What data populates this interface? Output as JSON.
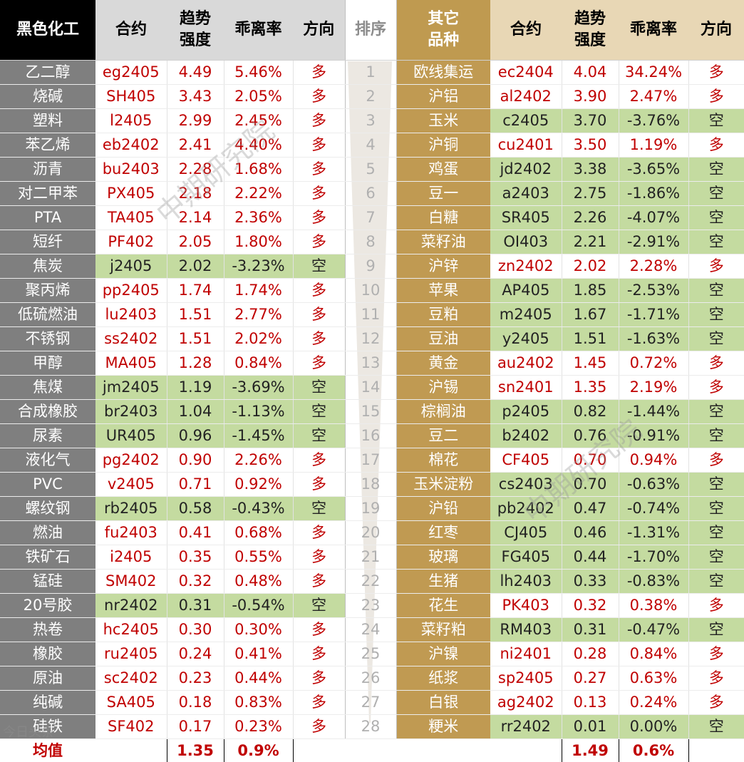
{
  "left": {
    "header": {
      "name": "黑色化工",
      "contract": "合约",
      "strength": "趋势\n强度",
      "deviation": "乖离率",
      "direction": "方向"
    },
    "rows": [
      {
        "name": "乙二醇",
        "contract": "eg2405",
        "strength": "4.49",
        "deviation": "5.46%",
        "direction": "多"
      },
      {
        "name": "烧碱",
        "contract": "SH405",
        "strength": "3.43",
        "deviation": "2.05%",
        "direction": "多"
      },
      {
        "name": "塑料",
        "contract": "l2405",
        "strength": "2.99",
        "deviation": "2.45%",
        "direction": "多"
      },
      {
        "name": "苯乙烯",
        "contract": "eb2402",
        "strength": "2.41",
        "deviation": "4.40%",
        "direction": "多"
      },
      {
        "name": "沥青",
        "contract": "bu2403",
        "strength": "2.28",
        "deviation": "1.68%",
        "direction": "多"
      },
      {
        "name": "对二甲苯",
        "contract": "PX405",
        "strength": "2.18",
        "deviation": "2.22%",
        "direction": "多"
      },
      {
        "name": "PTA",
        "contract": "TA405",
        "strength": "2.14",
        "deviation": "2.36%",
        "direction": "多"
      },
      {
        "name": "短纤",
        "contract": "PF402",
        "strength": "2.05",
        "deviation": "1.80%",
        "direction": "多"
      },
      {
        "name": "焦炭",
        "contract": "j2405",
        "strength": "2.02",
        "deviation": "-3.23%",
        "direction": "空"
      },
      {
        "name": "聚丙烯",
        "contract": "pp2405",
        "strength": "1.74",
        "deviation": "1.74%",
        "direction": "多"
      },
      {
        "name": "低硫燃油",
        "contract": "lu2403",
        "strength": "1.51",
        "deviation": "2.77%",
        "direction": "多"
      },
      {
        "name": "不锈钢",
        "contract": "ss2402",
        "strength": "1.51",
        "deviation": "2.02%",
        "direction": "多"
      },
      {
        "name": "甲醇",
        "contract": "MA405",
        "strength": "1.28",
        "deviation": "0.84%",
        "direction": "多"
      },
      {
        "name": "焦煤",
        "contract": "jm2405",
        "strength": "1.19",
        "deviation": "-3.69%",
        "direction": "空"
      },
      {
        "name": "合成橡胶",
        "contract": "br2403",
        "strength": "1.04",
        "deviation": "-1.13%",
        "direction": "空"
      },
      {
        "name": "尿素",
        "contract": "UR405",
        "strength": "0.96",
        "deviation": "-1.45%",
        "direction": "空"
      },
      {
        "name": "液化气",
        "contract": "pg2402",
        "strength": "0.90",
        "deviation": "2.26%",
        "direction": "多"
      },
      {
        "name": "PVC",
        "contract": "v2405",
        "strength": "0.71",
        "deviation": "0.92%",
        "direction": "多"
      },
      {
        "name": "螺纹钢",
        "contract": "rb2405",
        "strength": "0.58",
        "deviation": "-0.43%",
        "direction": "空"
      },
      {
        "name": "燃油",
        "contract": "fu2403",
        "strength": "0.41",
        "deviation": "0.68%",
        "direction": "多"
      },
      {
        "name": "铁矿石",
        "contract": "i2405",
        "strength": "0.35",
        "deviation": "0.55%",
        "direction": "多"
      },
      {
        "name": "锰硅",
        "contract": "SM402",
        "strength": "0.32",
        "deviation": "0.48%",
        "direction": "多"
      },
      {
        "name": "20号胶",
        "contract": "nr2402",
        "strength": "0.31",
        "deviation": "-0.54%",
        "direction": "空"
      },
      {
        "name": "热卷",
        "contract": "hc2405",
        "strength": "0.30",
        "deviation": "0.30%",
        "direction": "多"
      },
      {
        "name": "橡胶",
        "contract": "ru2405",
        "strength": "0.24",
        "deviation": "0.41%",
        "direction": "多"
      },
      {
        "name": "原油",
        "contract": "sc2402",
        "strength": "0.23",
        "deviation": "0.44%",
        "direction": "多"
      },
      {
        "name": "纯碱",
        "contract": "SA405",
        "strength": "0.18",
        "deviation": "0.83%",
        "direction": "多"
      },
      {
        "name": "硅铁",
        "contract": "SF402",
        "strength": "0.17",
        "deviation": "0.23%",
        "direction": "多"
      }
    ],
    "average": {
      "label": "均值",
      "strength": "1.35",
      "deviation": "0.9%"
    }
  },
  "rank": {
    "header": "排序",
    "values": [
      "1",
      "2",
      "3",
      "4",
      "5",
      "6",
      "7",
      "8",
      "9",
      "10",
      "11",
      "12",
      "13",
      "14",
      "15",
      "16",
      "17",
      "18",
      "19",
      "20",
      "21",
      "22",
      "23",
      "24",
      "25",
      "26",
      "27",
      "28"
    ]
  },
  "right": {
    "header": {
      "name": "其它\n品种",
      "contract": "合约",
      "strength": "趋势\n强度",
      "deviation": "乖离率",
      "direction": "方向"
    },
    "rows": [
      {
        "name": "欧线集运",
        "contract": "ec2404",
        "strength": "4.04",
        "deviation": "34.24%",
        "direction": "多"
      },
      {
        "name": "沪铝",
        "contract": "al2402",
        "strength": "3.90",
        "deviation": "2.47%",
        "direction": "多"
      },
      {
        "name": "玉米",
        "contract": "c2405",
        "strength": "3.70",
        "deviation": "-3.76%",
        "direction": "空"
      },
      {
        "name": "沪铜",
        "contract": "cu2401",
        "strength": "3.50",
        "deviation": "1.19%",
        "direction": "多"
      },
      {
        "name": "鸡蛋",
        "contract": "jd2402",
        "strength": "3.38",
        "deviation": "-3.65%",
        "direction": "空"
      },
      {
        "name": "豆一",
        "contract": "a2403",
        "strength": "2.75",
        "deviation": "-1.86%",
        "direction": "空"
      },
      {
        "name": "白糖",
        "contract": "SR405",
        "strength": "2.26",
        "deviation": "-4.07%",
        "direction": "空"
      },
      {
        "name": "菜籽油",
        "contract": "OI403",
        "strength": "2.21",
        "deviation": "-2.91%",
        "direction": "空"
      },
      {
        "name": "沪锌",
        "contract": "zn2402",
        "strength": "2.02",
        "deviation": "2.28%",
        "direction": "多"
      },
      {
        "name": "苹果",
        "contract": "AP405",
        "strength": "1.85",
        "deviation": "-2.53%",
        "direction": "空"
      },
      {
        "name": "豆粕",
        "contract": "m2405",
        "strength": "1.67",
        "deviation": "-1.71%",
        "direction": "空"
      },
      {
        "name": "豆油",
        "contract": "y2405",
        "strength": "1.51",
        "deviation": "-1.63%",
        "direction": "空"
      },
      {
        "name": "黄金",
        "contract": "au2402",
        "strength": "1.45",
        "deviation": "0.72%",
        "direction": "多"
      },
      {
        "name": "沪锡",
        "contract": "sn2401",
        "strength": "1.35",
        "deviation": "2.19%",
        "direction": "多"
      },
      {
        "name": "棕榈油",
        "contract": "p2405",
        "strength": "0.82",
        "deviation": "-1.44%",
        "direction": "空"
      },
      {
        "name": "豆二",
        "contract": "b2402",
        "strength": "0.76",
        "deviation": "-0.91%",
        "direction": "空"
      },
      {
        "name": "棉花",
        "contract": "CF405",
        "strength": "0.70",
        "deviation": "0.94%",
        "direction": "多"
      },
      {
        "name": "玉米淀粉",
        "contract": "cs2403",
        "strength": "0.70",
        "deviation": "-0.63%",
        "direction": "空"
      },
      {
        "name": "沪铅",
        "contract": "pb2402",
        "strength": "0.47",
        "deviation": "-0.74%",
        "direction": "空"
      },
      {
        "name": "红枣",
        "contract": "CJ405",
        "strength": "0.46",
        "deviation": "-1.31%",
        "direction": "空"
      },
      {
        "name": "玻璃",
        "contract": "FG405",
        "strength": "0.44",
        "deviation": "-1.70%",
        "direction": "空"
      },
      {
        "name": "生猪",
        "contract": "lh2403",
        "strength": "0.33",
        "deviation": "-0.83%",
        "direction": "空"
      },
      {
        "name": "花生",
        "contract": "PK403",
        "strength": "0.32",
        "deviation": "0.38%",
        "direction": "多"
      },
      {
        "name": "菜籽粕",
        "contract": "RM403",
        "strength": "0.31",
        "deviation": "-0.47%",
        "direction": "空"
      },
      {
        "name": "沪镍",
        "contract": "ni2401",
        "strength": "0.28",
        "deviation": "0.84%",
        "direction": "多"
      },
      {
        "name": "纸浆",
        "contract": "sp2405",
        "strength": "0.27",
        "deviation": "0.63%",
        "direction": "多"
      },
      {
        "name": "白银",
        "contract": "ag2402",
        "strength": "0.13",
        "deviation": "0.24%",
        "direction": "多"
      },
      {
        "name": "粳米",
        "contract": "rr2402",
        "strength": "0.01",
        "deviation": "0.00%",
        "direction": "空"
      }
    ],
    "average": {
      "strength": "1.49",
      "deviation": "0.6%"
    }
  },
  "watermarks": [
    "中期研究院",
    "中期研究院",
    "今日头条"
  ],
  "colors": {
    "long": "#c00000",
    "short_bg": "#c4dba0",
    "neutral": "#222222",
    "left_name_bg": "#7f7f7f",
    "right_name_bg": "#c09a52",
    "header_left": "#000000",
    "header_right": "#bf9a50",
    "header_gray": "#d9d9d9",
    "header_beige": "#e8d7b5"
  }
}
